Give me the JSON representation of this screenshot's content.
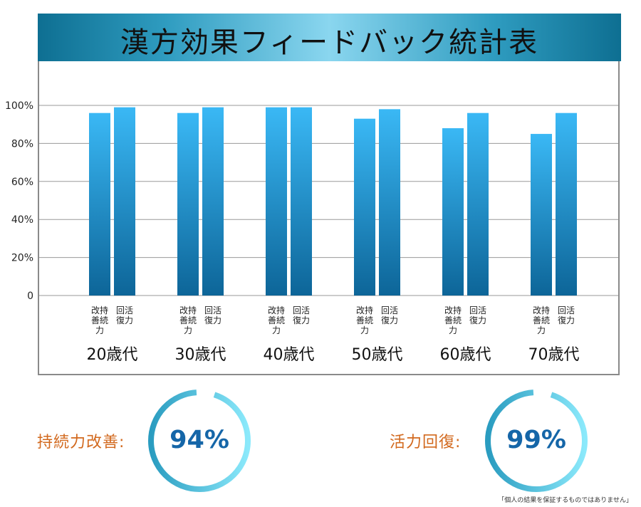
{
  "title": "漢方効果フィードバック統計表",
  "chart_data": {
    "type": "bar",
    "categories": [
      "20歳代",
      "30歳代",
      "40歳代",
      "50歳代",
      "60歳代",
      "70歳代"
    ],
    "series": [
      {
        "name": "改持善続力",
        "values": [
          96,
          96,
          99,
          93,
          88,
          85
        ]
      },
      {
        "name": "回活復力",
        "values": [
          99,
          99,
          99,
          98,
          96,
          96
        ]
      }
    ],
    "ylim": [
      0,
      100
    ],
    "yticks": [
      "0",
      "20%",
      "40%",
      "60%",
      "80%",
      "100%"
    ],
    "ytick_values": [
      0,
      20,
      40,
      60,
      80,
      100
    ],
    "bar_labels": [
      [
        "改持",
        "善続",
        "力"
      ],
      [
        "回活",
        "復力"
      ]
    ],
    "bar_color_top": "#3ab8f5",
    "bar_color_bottom": "#0d6598",
    "grid": true
  },
  "stats": [
    {
      "label": "持続力改善:",
      "value": "94%",
      "percent": 94
    },
    {
      "label": "活力回復:",
      "value": "99%",
      "percent": 99
    }
  ],
  "disclaimer": "「個人の結果を保証するものではありません」"
}
